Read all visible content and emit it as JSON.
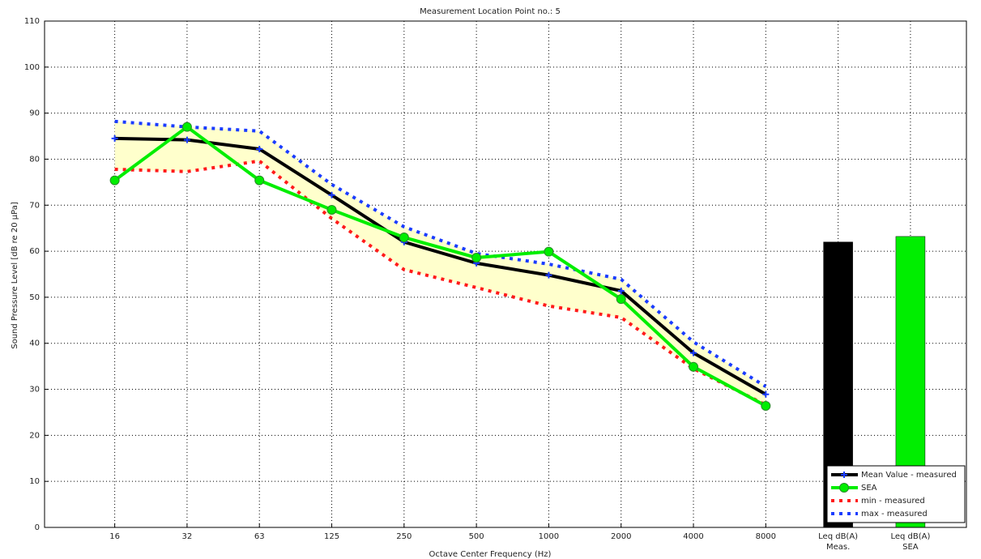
{
  "chart_data": {
    "type": "line",
    "title": "Measurement Location Point no.: 5",
    "xlabel": "Octave Center Frequency (Hz)",
    "ylabel": "Sound Pressure Level [dB re 20 µPa]",
    "categories": [
      "16",
      "32",
      "63",
      "125",
      "250",
      "500",
      "1000",
      "2000",
      "4000",
      "8000",
      "Leq dB(A)\nMeas.",
      "Leq dB(A)\nSEA"
    ],
    "series": [
      {
        "name": "Mean Value - measured",
        "color": "#000000",
        "marker_color": "#1a3cff",
        "marker": "plus",
        "line_style": "solid",
        "values": [
          84.5,
          84.2,
          82.2,
          72.2,
          62,
          57.4,
          54.8,
          51.4,
          37.9,
          28.9,
          null,
          null
        ]
      },
      {
        "name": "SEA",
        "color": "#00ee00",
        "marker_color": "#00ee00",
        "marker": "circle",
        "line_style": "solid",
        "values": [
          75.4,
          87,
          75.4,
          69,
          63,
          58.6,
          59.9,
          49.6,
          34.9,
          26.4,
          null,
          null
        ]
      },
      {
        "name": "min - measured",
        "color": "#ff1a1a",
        "marker": "none",
        "line_style": "dotted",
        "values": [
          77.8,
          77.3,
          79.6,
          67.1,
          56,
          52.1,
          48.1,
          45.6,
          34.5,
          26.6,
          null,
          null
        ]
      },
      {
        "name": "max - measured",
        "color": "#1a3cff",
        "marker": "none",
        "line_style": "dotted",
        "values": [
          88.2,
          87,
          86.1,
          74.5,
          65.3,
          59.5,
          57.2,
          53.9,
          40.3,
          30.6,
          null,
          null
        ]
      }
    ],
    "band_color": "#ffffcc",
    "bars": [
      {
        "color": "#000000",
        "values": [
          null,
          null,
          null,
          null,
          null,
          null,
          null,
          null,
          null,
          null,
          62,
          null
        ]
      },
      {
        "color": "#00ee00",
        "values": [
          null,
          null,
          null,
          null,
          null,
          null,
          null,
          null,
          null,
          null,
          null,
          63.2
        ]
      }
    ],
    "ylim": [
      0,
      110
    ],
    "yticks": [
      0,
      10,
      20,
      30,
      40,
      50,
      60,
      70,
      80,
      90,
      100,
      110
    ],
    "grid": true,
    "legend": "lower right"
  }
}
